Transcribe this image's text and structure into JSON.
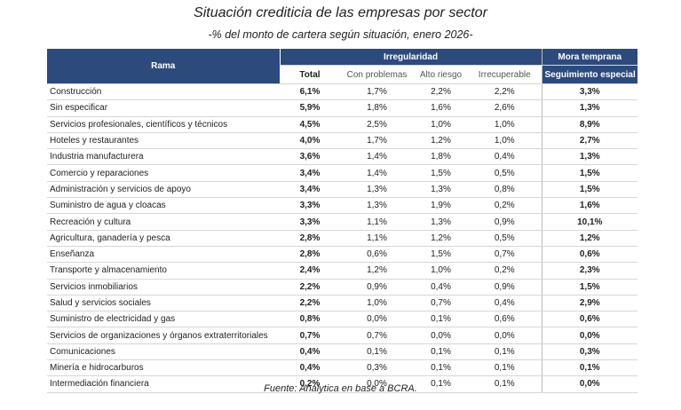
{
  "header": {
    "title": "Situación crediticia de las empresas por sector",
    "subtitle": "-% del monto de cartera según situación, enero 2026-"
  },
  "table": {
    "groups": [
      "Rama",
      "Irregularidad",
      "Mora temprana"
    ],
    "columns": [
      "Total",
      "Con problemas",
      "Alto riesgo",
      "Irrecuperable",
      "Seguimiento especial"
    ],
    "rows": [
      [
        "Construcción",
        "6,1%",
        "1,7%",
        "2,2%",
        "2,2%",
        "3,3%"
      ],
      [
        "Sin especificar",
        "5,9%",
        "1,8%",
        "1,6%",
        "2,6%",
        "1,3%"
      ],
      [
        "Servicios profesionales, científicos y técnicos",
        "4,5%",
        "2,5%",
        "1,0%",
        "1,0%",
        "8,9%"
      ],
      [
        "Hoteles y restaurantes",
        "4,0%",
        "1,7%",
        "1,2%",
        "1,0%",
        "2,7%"
      ],
      [
        "Industria manufacturera",
        "3,6%",
        "1,4%",
        "1,8%",
        "0,4%",
        "1,3%"
      ],
      [
        "Comercio y reparaciones",
        "3,4%",
        "1,4%",
        "1,5%",
        "0,5%",
        "1,5%"
      ],
      [
        "Administración y servicios de apoyo",
        "3,4%",
        "1,3%",
        "1,3%",
        "0,8%",
        "1,5%"
      ],
      [
        "Suministro de agua y cloacas",
        "3,3%",
        "1,3%",
        "1,9%",
        "0,2%",
        "1,6%"
      ],
      [
        "Recreación y cultura",
        "3,3%",
        "1,1%",
        "1,3%",
        "0,9%",
        "10,1%"
      ],
      [
        "Agricultura, ganadería y pesca",
        "2,8%",
        "1,1%",
        "1,2%",
        "0,5%",
        "1,2%"
      ],
      [
        "Enseñanza",
        "2,8%",
        "0,6%",
        "1,5%",
        "0,7%",
        "0,6%"
      ],
      [
        "Transporte y almacenamiento",
        "2,4%",
        "1,2%",
        "1,0%",
        "0,2%",
        "2,3%"
      ],
      [
        "Servicios inmobiliarios",
        "2,2%",
        "0,9%",
        "0,4%",
        "0,9%",
        "1,5%"
      ],
      [
        "Salud y servicios sociales",
        "2,2%",
        "1,0%",
        "0,7%",
        "0,4%",
        "2,9%"
      ],
      [
        "Suministro de electricidad y gas",
        "0,8%",
        "0,0%",
        "0,1%",
        "0,6%",
        "0,6%"
      ],
      [
        "Servicios de organizaciones y órganos extraterritoriales",
        "0,7%",
        "0,7%",
        "0,0%",
        "0,0%",
        "0,0%"
      ],
      [
        "Comunicaciones",
        "0,4%",
        "0,1%",
        "0,1%",
        "0,1%",
        "0,3%"
      ],
      [
        "Minería e hidrocarburos",
        "0,4%",
        "0,3%",
        "0,1%",
        "0,1%",
        "0,1%"
      ],
      [
        "Intermediación financiera",
        "0,2%",
        "0,0%",
        "0,1%",
        "0,1%",
        "0,0%"
      ]
    ]
  },
  "footer": {
    "source": "Fuente: Analytica en base a BCRA."
  }
}
